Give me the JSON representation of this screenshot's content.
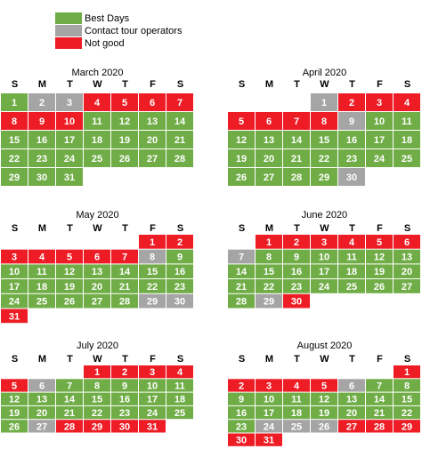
{
  "legend": [
    {
      "label": "Best Days",
      "color": "#70ad47"
    },
    {
      "label": "Contact tour operators",
      "color": "#a5a5a5"
    },
    {
      "label": "Not good",
      "color": "#ee1c25"
    }
  ],
  "weekdays": [
    "S",
    "M",
    "T",
    "W",
    "T",
    "F",
    "S"
  ],
  "months": [
    {
      "title": "March 2020",
      "weeks": [
        [
          {
            "day": 1,
            "color": "#70ad47"
          },
          {
            "day": 2,
            "color": "#a5a5a5"
          },
          {
            "day": 3,
            "color": "#a5a5a5"
          },
          {
            "day": 4,
            "color": "#ee1c25"
          },
          {
            "day": 5,
            "color": "#ee1c25"
          },
          {
            "day": 6,
            "color": "#ee1c25"
          },
          {
            "day": 7,
            "color": "#ee1c25"
          }
        ],
        [
          {
            "day": 8,
            "color": "#ee1c25"
          },
          {
            "day": 9,
            "color": "#ee1c25"
          },
          {
            "day": 10,
            "color": "#ee1c25"
          },
          {
            "day": 11,
            "color": "#70ad47"
          },
          {
            "day": 12,
            "color": "#70ad47"
          },
          {
            "day": 13,
            "color": "#70ad47"
          },
          {
            "day": 14,
            "color": "#70ad47"
          }
        ],
        [
          {
            "day": 15,
            "color": "#70ad47"
          },
          {
            "day": 16,
            "color": "#70ad47"
          },
          {
            "day": 17,
            "color": "#70ad47"
          },
          {
            "day": 18,
            "color": "#70ad47"
          },
          {
            "day": 19,
            "color": "#70ad47"
          },
          {
            "day": 20,
            "color": "#70ad47"
          },
          {
            "day": 21,
            "color": "#70ad47"
          }
        ],
        [
          {
            "day": 22,
            "color": "#70ad47"
          },
          {
            "day": 23,
            "color": "#70ad47"
          },
          {
            "day": 24,
            "color": "#70ad47"
          },
          {
            "day": 25,
            "color": "#70ad47"
          },
          {
            "day": 26,
            "color": "#70ad47"
          },
          {
            "day": 27,
            "color": "#70ad47"
          },
          {
            "day": 28,
            "color": "#70ad47"
          }
        ],
        [
          {
            "day": 29,
            "color": "#70ad47"
          },
          {
            "day": 30,
            "color": "#70ad47"
          },
          {
            "day": 31,
            "color": "#70ad47"
          },
          null,
          null,
          null,
          null
        ]
      ]
    },
    {
      "title": "April 2020",
      "weeks": [
        [
          null,
          null,
          null,
          {
            "day": 1,
            "color": "#a5a5a5"
          },
          {
            "day": 2,
            "color": "#ee1c25"
          },
          {
            "day": 3,
            "color": "#ee1c25"
          },
          {
            "day": 4,
            "color": "#ee1c25"
          }
        ],
        [
          {
            "day": 5,
            "color": "#ee1c25"
          },
          {
            "day": 6,
            "color": "#ee1c25"
          },
          {
            "day": 7,
            "color": "#ee1c25"
          },
          {
            "day": 8,
            "color": "#ee1c25"
          },
          {
            "day": 9,
            "color": "#a5a5a5"
          },
          {
            "day": 10,
            "color": "#70ad47"
          },
          {
            "day": 11,
            "color": "#70ad47"
          }
        ],
        [
          {
            "day": 12,
            "color": "#70ad47"
          },
          {
            "day": 13,
            "color": "#70ad47"
          },
          {
            "day": 14,
            "color": "#70ad47"
          },
          {
            "day": 15,
            "color": "#70ad47"
          },
          {
            "day": 16,
            "color": "#70ad47"
          },
          {
            "day": 17,
            "color": "#70ad47"
          },
          {
            "day": 18,
            "color": "#70ad47"
          }
        ],
        [
          {
            "day": 19,
            "color": "#70ad47"
          },
          {
            "day": 20,
            "color": "#70ad47"
          },
          {
            "day": 21,
            "color": "#70ad47"
          },
          {
            "day": 22,
            "color": "#70ad47"
          },
          {
            "day": 23,
            "color": "#70ad47"
          },
          {
            "day": 24,
            "color": "#70ad47"
          },
          {
            "day": 25,
            "color": "#70ad47"
          }
        ],
        [
          {
            "day": 26,
            "color": "#70ad47"
          },
          {
            "day": 27,
            "color": "#70ad47"
          },
          {
            "day": 28,
            "color": "#70ad47"
          },
          {
            "day": 29,
            "color": "#70ad47"
          },
          {
            "day": 30,
            "color": "#a5a5a5"
          },
          null,
          null
        ]
      ]
    },
    {
      "title": "May 2020",
      "weeks": [
        [
          null,
          null,
          null,
          null,
          null,
          {
            "day": 1,
            "color": "#ee1c25"
          },
          {
            "day": 2,
            "color": "#ee1c25"
          }
        ],
        [
          {
            "day": 3,
            "color": "#ee1c25"
          },
          {
            "day": 4,
            "color": "#ee1c25"
          },
          {
            "day": 5,
            "color": "#ee1c25"
          },
          {
            "day": 6,
            "color": "#ee1c25"
          },
          {
            "day": 7,
            "color": "#ee1c25"
          },
          {
            "day": 8,
            "color": "#a5a5a5"
          },
          {
            "day": 9,
            "color": "#70ad47"
          }
        ],
        [
          {
            "day": 10,
            "color": "#70ad47"
          },
          {
            "day": 11,
            "color": "#70ad47"
          },
          {
            "day": 12,
            "color": "#70ad47"
          },
          {
            "day": 13,
            "color": "#70ad47"
          },
          {
            "day": 14,
            "color": "#70ad47"
          },
          {
            "day": 15,
            "color": "#70ad47"
          },
          {
            "day": 16,
            "color": "#70ad47"
          }
        ],
        [
          {
            "day": 17,
            "color": "#70ad47"
          },
          {
            "day": 18,
            "color": "#70ad47"
          },
          {
            "day": 19,
            "color": "#70ad47"
          },
          {
            "day": 20,
            "color": "#70ad47"
          },
          {
            "day": 21,
            "color": "#70ad47"
          },
          {
            "day": 22,
            "color": "#70ad47"
          },
          {
            "day": 23,
            "color": "#70ad47"
          }
        ],
        [
          {
            "day": 24,
            "color": "#70ad47"
          },
          {
            "day": 25,
            "color": "#70ad47"
          },
          {
            "day": 26,
            "color": "#70ad47"
          },
          {
            "day": 27,
            "color": "#70ad47"
          },
          {
            "day": 28,
            "color": "#70ad47"
          },
          {
            "day": 29,
            "color": "#a5a5a5"
          },
          {
            "day": 30,
            "color": "#a5a5a5"
          }
        ],
        [
          {
            "day": 31,
            "color": "#ee1c25"
          },
          null,
          null,
          null,
          null,
          null,
          null
        ]
      ]
    },
    {
      "title": "June 2020",
      "weeks": [
        [
          null,
          {
            "day": 1,
            "color": "#ee1c25"
          },
          {
            "day": 2,
            "color": "#ee1c25"
          },
          {
            "day": 3,
            "color": "#ee1c25"
          },
          {
            "day": 4,
            "color": "#ee1c25"
          },
          {
            "day": 5,
            "color": "#ee1c25"
          },
          {
            "day": 6,
            "color": "#ee1c25"
          }
        ],
        [
          {
            "day": 7,
            "color": "#a5a5a5"
          },
          {
            "day": 8,
            "color": "#70ad47"
          },
          {
            "day": 9,
            "color": "#70ad47"
          },
          {
            "day": 10,
            "color": "#70ad47"
          },
          {
            "day": 11,
            "color": "#70ad47"
          },
          {
            "day": 12,
            "color": "#70ad47"
          },
          {
            "day": 13,
            "color": "#70ad47"
          }
        ],
        [
          {
            "day": 14,
            "color": "#70ad47"
          },
          {
            "day": 15,
            "color": "#70ad47"
          },
          {
            "day": 16,
            "color": "#70ad47"
          },
          {
            "day": 17,
            "color": "#70ad47"
          },
          {
            "day": 18,
            "color": "#70ad47"
          },
          {
            "day": 19,
            "color": "#70ad47"
          },
          {
            "day": 20,
            "color": "#70ad47"
          }
        ],
        [
          {
            "day": 21,
            "color": "#70ad47"
          },
          {
            "day": 22,
            "color": "#70ad47"
          },
          {
            "day": 23,
            "color": "#70ad47"
          },
          {
            "day": 24,
            "color": "#70ad47"
          },
          {
            "day": 25,
            "color": "#70ad47"
          },
          {
            "day": 26,
            "color": "#70ad47"
          },
          {
            "day": 27,
            "color": "#70ad47"
          }
        ],
        [
          {
            "day": 28,
            "color": "#70ad47"
          },
          {
            "day": 29,
            "color": "#a5a5a5"
          },
          {
            "day": 30,
            "color": "#ee1c25"
          },
          null,
          null,
          null,
          null
        ]
      ]
    },
    {
      "title": "July 2020",
      "weeks": [
        [
          null,
          null,
          null,
          {
            "day": 1,
            "color": "#ee1c25"
          },
          {
            "day": 2,
            "color": "#ee1c25"
          },
          {
            "day": 3,
            "color": "#ee1c25"
          },
          {
            "day": 4,
            "color": "#ee1c25"
          }
        ],
        [
          {
            "day": 5,
            "color": "#ee1c25"
          },
          {
            "day": 6,
            "color": "#a5a5a5"
          },
          {
            "day": 7,
            "color": "#70ad47"
          },
          {
            "day": 8,
            "color": "#70ad47"
          },
          {
            "day": 9,
            "color": "#70ad47"
          },
          {
            "day": 10,
            "color": "#70ad47"
          },
          {
            "day": 11,
            "color": "#70ad47"
          }
        ],
        [
          {
            "day": 12,
            "color": "#70ad47"
          },
          {
            "day": 13,
            "color": "#70ad47"
          },
          {
            "day": 14,
            "color": "#70ad47"
          },
          {
            "day": 15,
            "color": "#70ad47"
          },
          {
            "day": 16,
            "color": "#70ad47"
          },
          {
            "day": 17,
            "color": "#70ad47"
          },
          {
            "day": 18,
            "color": "#70ad47"
          }
        ],
        [
          {
            "day": 19,
            "color": "#70ad47"
          },
          {
            "day": 20,
            "color": "#70ad47"
          },
          {
            "day": 21,
            "color": "#70ad47"
          },
          {
            "day": 22,
            "color": "#70ad47"
          },
          {
            "day": 23,
            "color": "#70ad47"
          },
          {
            "day": 24,
            "color": "#70ad47"
          },
          {
            "day": 25,
            "color": "#70ad47"
          }
        ],
        [
          {
            "day": 26,
            "color": "#70ad47"
          },
          {
            "day": 27,
            "color": "#a5a5a5"
          },
          {
            "day": 28,
            "color": "#ee1c25"
          },
          {
            "day": 29,
            "color": "#ee1c25"
          },
          {
            "day": 30,
            "color": "#ee1c25"
          },
          {
            "day": 31,
            "color": "#ee1c25"
          },
          null
        ]
      ]
    },
    {
      "title": "August 2020",
      "weeks": [
        [
          null,
          null,
          null,
          null,
          null,
          null,
          {
            "day": 1,
            "color": "#ee1c25"
          }
        ],
        [
          {
            "day": 2,
            "color": "#ee1c25"
          },
          {
            "day": 3,
            "color": "#ee1c25"
          },
          {
            "day": 4,
            "color": "#ee1c25"
          },
          {
            "day": 5,
            "color": "#ee1c25"
          },
          {
            "day": 6,
            "color": "#a5a5a5"
          },
          {
            "day": 7,
            "color": "#70ad47"
          },
          {
            "day": 8,
            "color": "#70ad47"
          }
        ],
        [
          {
            "day": 9,
            "color": "#70ad47"
          },
          {
            "day": 10,
            "color": "#70ad47"
          },
          {
            "day": 11,
            "color": "#70ad47"
          },
          {
            "day": 12,
            "color": "#70ad47"
          },
          {
            "day": 13,
            "color": "#70ad47"
          },
          {
            "day": 14,
            "color": "#70ad47"
          },
          {
            "day": 15,
            "color": "#70ad47"
          }
        ],
        [
          {
            "day": 16,
            "color": "#70ad47"
          },
          {
            "day": 17,
            "color": "#70ad47"
          },
          {
            "day": 18,
            "color": "#70ad47"
          },
          {
            "day": 19,
            "color": "#70ad47"
          },
          {
            "day": 20,
            "color": "#70ad47"
          },
          {
            "day": 21,
            "color": "#70ad47"
          },
          {
            "day": 22,
            "color": "#70ad47"
          }
        ],
        [
          {
            "day": 23,
            "color": "#70ad47"
          },
          {
            "day": 24,
            "color": "#a5a5a5"
          },
          {
            "day": 25,
            "color": "#a5a5a5"
          },
          {
            "day": 26,
            "color": "#a5a5a5"
          },
          {
            "day": 27,
            "color": "#ee1c25"
          },
          {
            "day": 28,
            "color": "#ee1c25"
          },
          {
            "day": 29,
            "color": "#ee1c25"
          }
        ],
        [
          {
            "day": 30,
            "color": "#ee1c25"
          },
          {
            "day": 31,
            "color": "#ee1c25"
          },
          null,
          null,
          null,
          null,
          null
        ]
      ]
    }
  ]
}
